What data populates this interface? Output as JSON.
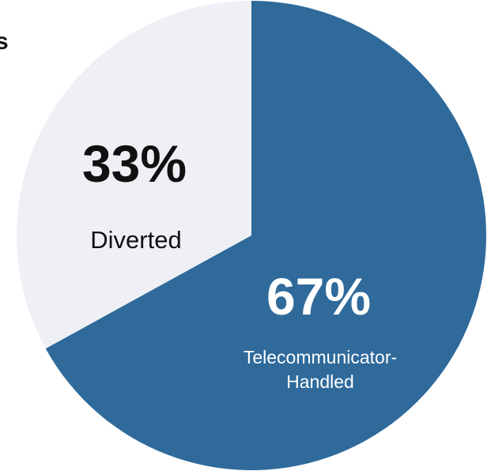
{
  "page": {
    "cut_off_title_fragment": "s"
  },
  "chart_data": {
    "type": "pie",
    "categories": [
      "Diverted",
      "Telecommunicator-Handled"
    ],
    "values": [
      33,
      67
    ],
    "value_labels": [
      "33%",
      "67%"
    ],
    "category_labels": [
      [
        "Diverted"
      ],
      [
        "Telecommunicator-",
        "Handled"
      ]
    ],
    "colors": [
      "#eef0f5",
      "#2f6a9b"
    ],
    "label_colors": [
      "#111111",
      "#ffffff"
    ],
    "legend": "none"
  }
}
